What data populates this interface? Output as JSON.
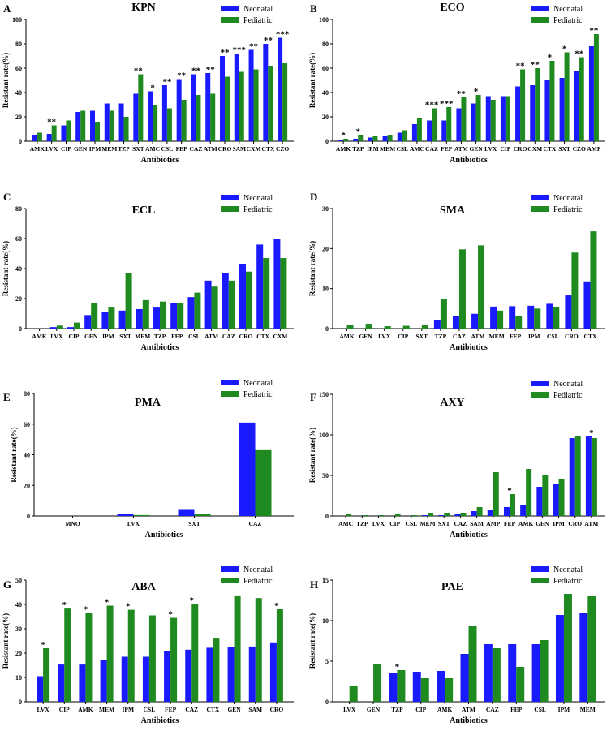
{
  "colors": {
    "neonatal": "#1a1aff",
    "pediatric": "#1f8a1f",
    "axis": "#000000"
  },
  "chart_data": [
    {
      "letter": "A",
      "type": "bar",
      "title": "KPN",
      "xlabel": "Antibiotics",
      "ylabel": "Resistant rate(%)",
      "ylim": [
        0,
        100
      ],
      "yticks": [
        0,
        20,
        40,
        60,
        80,
        100
      ],
      "legend": "top-right",
      "legend_labels": [
        "Neonatal",
        "Pediatric"
      ],
      "categories": [
        "AMK",
        "LVX",
        "CIP",
        "GEN",
        "IPM",
        "MEM",
        "TZP",
        "SXT",
        "AMC",
        "CSL",
        "FEP",
        "CAZ",
        "ATM",
        "CRO",
        "SAM",
        "CXM",
        "CTX",
        "CZO"
      ],
      "series": [
        {
          "name": "Neonatal",
          "values": [
            5,
            6,
            13,
            24,
            25,
            31,
            31,
            39,
            41,
            46,
            51,
            55,
            56,
            70,
            72,
            75,
            80,
            85
          ]
        },
        {
          "name": "Pediatric",
          "values": [
            7,
            13,
            17,
            25,
            16,
            25,
            20,
            55,
            30,
            27,
            34,
            38,
            39,
            53,
            57,
            59,
            62,
            64
          ]
        }
      ],
      "annotations": [
        "",
        "**",
        "",
        "",
        "",
        "",
        "",
        "**",
        "*",
        "**",
        "**",
        "**",
        "**",
        "**",
        "***",
        "**",
        "**",
        "***"
      ]
    },
    {
      "letter": "B",
      "type": "bar",
      "title": "ECO",
      "xlabel": "Antibiotics",
      "ylabel": "Resistant rate(%)",
      "ylim": [
        0,
        100
      ],
      "yticks": [
        0,
        20,
        40,
        60,
        80,
        100
      ],
      "legend": "top-right",
      "legend_labels": [
        "Neonatal",
        "Pediatric"
      ],
      "categories": [
        "AMK",
        "TZP",
        "IPM",
        "MEM",
        "CSL",
        "AMC",
        "CAZ",
        "FEP",
        "ATM",
        "GEN",
        "LVX",
        "CIP",
        "CRO",
        "CXM",
        "CTX",
        "SXT",
        "CZO",
        "AMP"
      ],
      "series": [
        {
          "name": "Neonatal",
          "values": [
            1,
            2,
            3,
            4,
            7,
            14,
            17,
            17,
            27,
            31,
            37,
            37,
            45,
            46,
            50,
            52,
            58,
            78
          ]
        },
        {
          "name": "Pediatric",
          "values": [
            2,
            5,
            4,
            5,
            9,
            19,
            27,
            28,
            36,
            38,
            34,
            37,
            59,
            60,
            66,
            73,
            69,
            88
          ]
        }
      ],
      "annotations": [
        "*",
        "*",
        "",
        "",
        "",
        "",
        "***",
        "***",
        "**",
        "*",
        "",
        "",
        "**",
        "**",
        "*",
        "*",
        "**",
        "**"
      ]
    },
    {
      "letter": "C",
      "type": "bar",
      "title": "ECL",
      "xlabel": "Antibiotics",
      "ylabel": "Resistant rate(%)",
      "ylim": [
        0,
        80
      ],
      "yticks": [
        0,
        20,
        40,
        60,
        80
      ],
      "legend": "top-right",
      "legend_labels": [
        "Neonatal",
        "Pediatric"
      ],
      "categories": [
        "AMK",
        "LVX",
        "CIP",
        "GEN",
        "IPM",
        "SXT",
        "MEM",
        "TZP",
        "FEP",
        "CSL",
        "ATM",
        "CAZ",
        "CRO",
        "CTX",
        "CXM"
      ],
      "series": [
        {
          "name": "Neonatal",
          "values": [
            0,
            1,
            1,
            9,
            11,
            12,
            13,
            14,
            17,
            21,
            32,
            37,
            43,
            56,
            60
          ]
        },
        {
          "name": "Pediatric",
          "values": [
            0,
            2,
            4,
            17,
            14,
            37,
            19,
            18,
            17,
            24,
            28,
            32,
            38,
            47,
            47
          ]
        }
      ],
      "annotations": [
        "",
        "",
        "",
        "",
        "",
        "",
        "",
        "",
        "",
        "",
        "",
        "",
        "",
        "",
        ""
      ]
    },
    {
      "letter": "D",
      "type": "bar",
      "title": "SMA",
      "xlabel": "Antibiotics",
      "ylabel": "Resistant rate(%)",
      "ylim": [
        0,
        30
      ],
      "yticks": [
        0,
        10,
        20,
        30
      ],
      "legend": "top-right",
      "legend_labels": [
        "Neonatal",
        "Pediatric"
      ],
      "categories": [
        "AMK",
        "GEN",
        "LVX",
        "CIP",
        "SXT",
        "TZP",
        "CAZ",
        "ATM",
        "MEM",
        "FEP",
        "IPM",
        "CSL",
        "CRO",
        "CTX"
      ],
      "series": [
        {
          "name": "Neonatal",
          "values": [
            0,
            0,
            0,
            0,
            0,
            2.2,
            3.2,
            3.7,
            5.5,
            5.6,
            5.7,
            6.2,
            8.3,
            11.8
          ]
        },
        {
          "name": "Pediatric",
          "values": [
            1,
            1.2,
            0.6,
            0.7,
            1,
            7.4,
            19.8,
            20.8,
            4.5,
            3.2,
            5,
            5.4,
            19,
            24.3
          ]
        }
      ],
      "annotations": [
        "",
        "",
        "",
        "",
        "",
        "",
        "",
        "",
        "",
        "",
        "",
        "",
        "",
        ""
      ]
    },
    {
      "letter": "E",
      "type": "bar",
      "title": "PMA",
      "xlabel": "Antibiotics",
      "ylabel": "Resistant rate(%)",
      "ylim": [
        0,
        80
      ],
      "yticks": [
        0,
        20,
        40,
        60,
        80
      ],
      "legend": "top-right",
      "legend_labels": [
        "Neonatal",
        "Pediatric"
      ],
      "categories": [
        "MNO",
        "LVX",
        "SXT",
        "CAZ"
      ],
      "series": [
        {
          "name": "Neonatal",
          "values": [
            0,
            1.2,
            4.5,
            61
          ]
        },
        {
          "name": "Pediatric",
          "values": [
            0,
            0.6,
            1.2,
            43
          ]
        }
      ],
      "annotations": [
        "",
        "",
        "",
        ""
      ]
    },
    {
      "letter": "F",
      "type": "bar",
      "title": "AXY",
      "xlabel": "Antibiotics",
      "ylabel": "Resistant rate(%)",
      "ylim": [
        0,
        150
      ],
      "yticks": [
        0,
        50,
        100,
        150
      ],
      "legend": "top-right",
      "legend_labels": [
        "Neonatal",
        "Pediatric"
      ],
      "categories": [
        "AMC",
        "TZP",
        "LVX",
        "CIP",
        "CSL",
        "MEM",
        "SXT",
        "CAZ",
        "SAM",
        "AMP",
        "FEP",
        "AMK",
        "GEN",
        "IPM",
        "CRO",
        "ATM"
      ],
      "series": [
        {
          "name": "Neonatal",
          "values": [
            0,
            0,
            0,
            0,
            0,
            1,
            1,
            3,
            6,
            8,
            11,
            14,
            36,
            39,
            96,
            98
          ]
        },
        {
          "name": "Pediatric",
          "values": [
            2,
            1,
            1,
            2,
            1,
            4,
            4,
            4,
            11,
            54,
            27,
            58,
            50,
            45,
            99,
            96
          ]
        }
      ],
      "annotations": [
        "",
        "",
        "",
        "",
        "",
        "",
        "",
        "",
        "",
        "",
        "*",
        "",
        "",
        "",
        "",
        "*"
      ]
    },
    {
      "letter": "G",
      "type": "bar",
      "title": "ABA",
      "xlabel": "Antibiotics",
      "ylabel": "Resistant rate(%)",
      "ylim": [
        0,
        50
      ],
      "yticks": [
        0,
        10,
        20,
        30,
        40,
        50
      ],
      "legend": "top-right",
      "legend_labels": [
        "Neonatal",
        "Pediatric"
      ],
      "categories": [
        "LVX",
        "CIP",
        "AMK",
        "MEM",
        "IPM",
        "CSL",
        "FEP",
        "CAZ",
        "CTX",
        "GEN",
        "SAM",
        "CRO"
      ],
      "series": [
        {
          "name": "Neonatal",
          "values": [
            10.5,
            15.3,
            15.3,
            17,
            18.5,
            18.5,
            21,
            21.4,
            22.2,
            22.5,
            22.7,
            24.4
          ]
        },
        {
          "name": "Pediatric",
          "values": [
            22,
            38.3,
            36.5,
            39.5,
            37.8,
            35.5,
            34.5,
            40.2,
            26.3,
            43.7,
            42.6,
            38
          ]
        }
      ],
      "annotations": [
        "*",
        "*",
        "*",
        "*",
        "*",
        "",
        "*",
        "*",
        "",
        "",
        "",
        "*"
      ]
    },
    {
      "letter": "H",
      "type": "bar",
      "title": "PAE",
      "xlabel": "Antibiotics",
      "ylabel": "Resistant rate(%)",
      "ylim": [
        0,
        15
      ],
      "yticks": [
        0,
        5,
        10,
        15
      ],
      "legend": "top-right",
      "legend_labels": [
        "Neonatal",
        "Pediatric"
      ],
      "categories": [
        "LVX",
        "GEN",
        "TZP",
        "CIP",
        "AMK",
        "ATM",
        "CAZ",
        "FEP",
        "CSL",
        "IPM",
        "MEM"
      ],
      "series": [
        {
          "name": "Neonatal",
          "values": [
            0,
            0,
            3.6,
            3.7,
            3.8,
            5.9,
            7.1,
            7.1,
            7.1,
            10.7,
            10.9
          ]
        },
        {
          "name": "Pediatric",
          "values": [
            2,
            4.6,
            3.9,
            2.9,
            2.9,
            9.4,
            6.6,
            4.3,
            7.6,
            13.3,
            13
          ]
        }
      ],
      "annotations": [
        "",
        "",
        "*",
        "",
        "",
        "",
        "",
        "",
        "",
        "",
        ""
      ]
    }
  ]
}
